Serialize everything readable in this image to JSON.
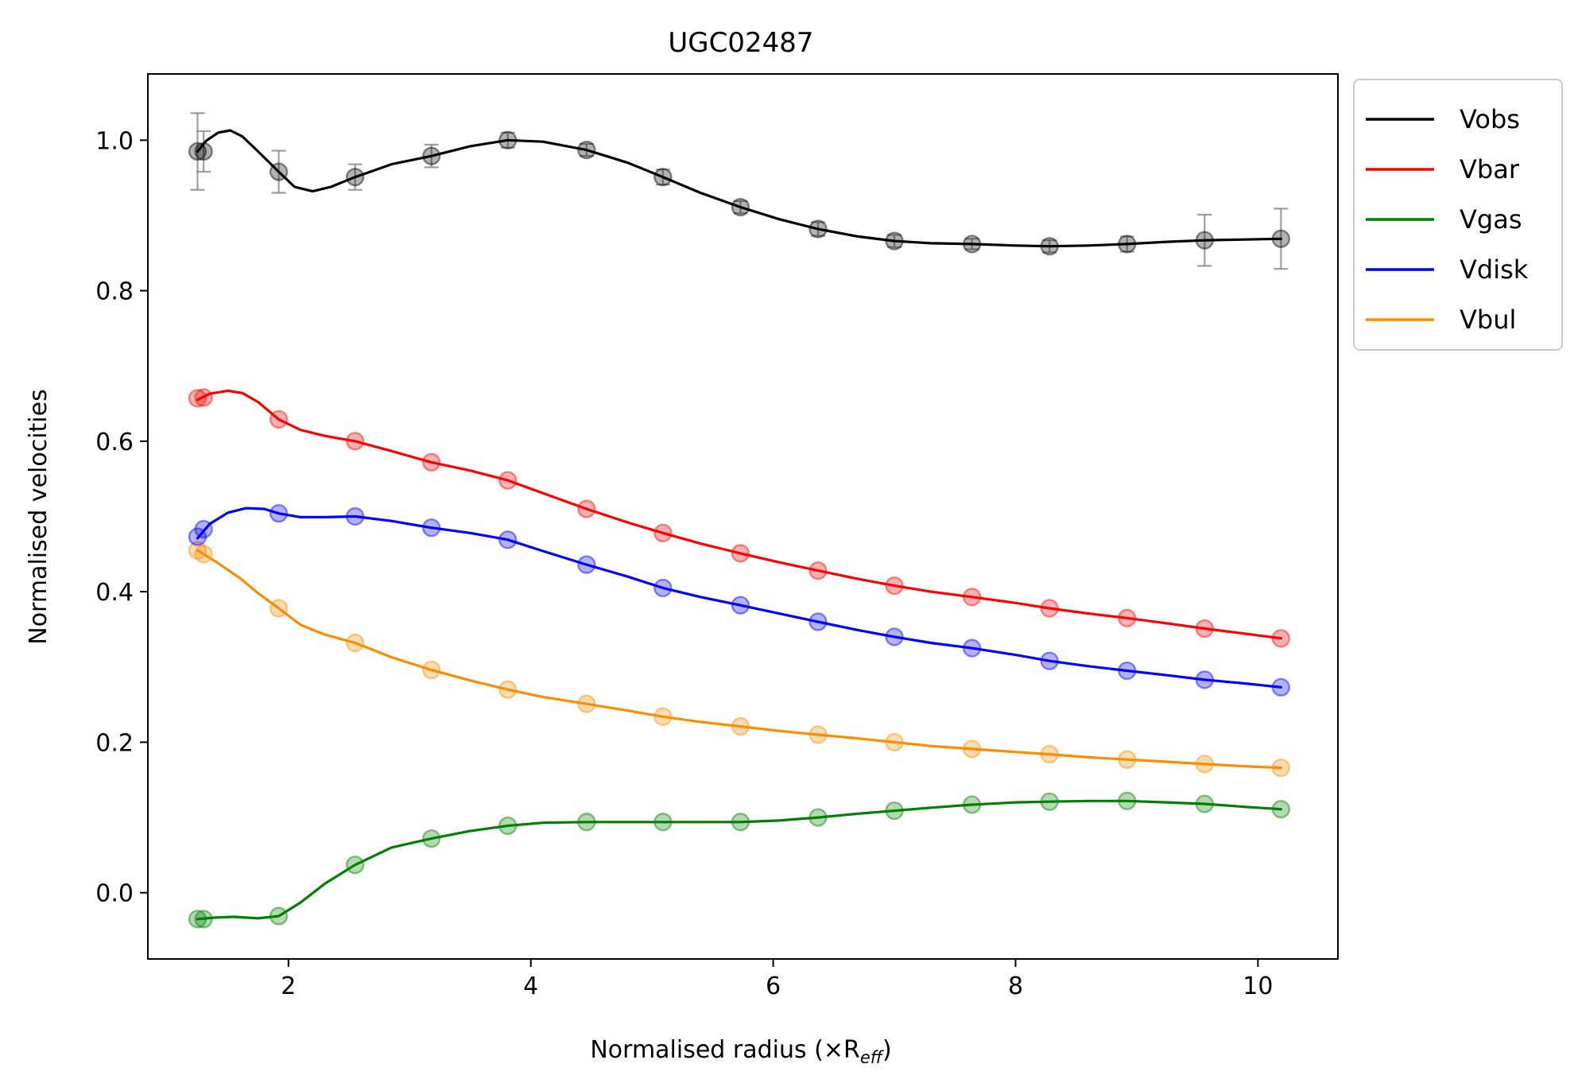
{
  "chart_data": {
    "type": "line",
    "title": "UGC02487",
    "xlabel": "Normalised radius (×R",
    "xlabel_sub": "eff",
    "xlabel_close": ")",
    "ylabel": "Normalised velocities",
    "xlim": [
      0.84,
      10.66
    ],
    "ylim": [
      -0.088,
      1.088
    ],
    "xticks": [
      2,
      4,
      6,
      8,
      10
    ],
    "yticks": [
      0.0,
      0.2,
      0.4,
      0.6,
      0.8,
      1.0
    ],
    "xtick_labels": [
      "2",
      "4",
      "6",
      "8",
      "10"
    ],
    "ytick_labels": [
      "0.0",
      "0.2",
      "0.4",
      "0.6",
      "0.8",
      "1.0"
    ],
    "grid": false,
    "legend_position": "outside-top-right",
    "x": [
      1.25,
      1.3,
      1.92,
      2.55,
      3.18,
      3.81,
      4.46,
      5.09,
      5.73,
      6.37,
      7.0,
      7.64,
      8.28,
      8.92,
      9.56,
      10.19
    ],
    "series": [
      {
        "name": "Vobs",
        "color": "#000000",
        "values": [
          0.985,
          0.985,
          0.958,
          0.951,
          0.979,
          1.0,
          0.987,
          0.951,
          0.911,
          0.882,
          0.866,
          0.862,
          0.859,
          0.862,
          0.867,
          0.869
        ],
        "errors": [
          0.051,
          0.027,
          0.028,
          0.017,
          0.015,
          0.01,
          0.008,
          0.01,
          0.008,
          0.009,
          0.008,
          0.007,
          0.008,
          0.01,
          0.034,
          0.04
        ],
        "curve": [
          [
            1.25,
            0.985
          ],
          [
            1.32,
            0.999
          ],
          [
            1.42,
            1.01
          ],
          [
            1.52,
            1.013
          ],
          [
            1.62,
            1.005
          ],
          [
            1.75,
            0.985
          ],
          [
            1.92,
            0.958
          ],
          [
            2.05,
            0.938
          ],
          [
            2.2,
            0.932
          ],
          [
            2.35,
            0.938
          ],
          [
            2.55,
            0.951
          ],
          [
            2.85,
            0.968
          ],
          [
            3.18,
            0.979
          ],
          [
            3.5,
            0.992
          ],
          [
            3.81,
            1.0
          ],
          [
            4.1,
            0.998
          ],
          [
            4.46,
            0.987
          ],
          [
            4.8,
            0.97
          ],
          [
            5.09,
            0.951
          ],
          [
            5.4,
            0.93
          ],
          [
            5.73,
            0.911
          ],
          [
            6.05,
            0.895
          ],
          [
            6.37,
            0.882
          ],
          [
            6.7,
            0.872
          ],
          [
            7.0,
            0.866
          ],
          [
            7.3,
            0.863
          ],
          [
            7.64,
            0.862
          ],
          [
            8.0,
            0.86
          ],
          [
            8.28,
            0.859
          ],
          [
            8.6,
            0.86
          ],
          [
            8.92,
            0.862
          ],
          [
            9.25,
            0.865
          ],
          [
            9.56,
            0.867
          ],
          [
            9.9,
            0.868
          ],
          [
            10.19,
            0.869
          ]
        ]
      },
      {
        "name": "Vbar",
        "color": "#ff0000",
        "values": [
          0.657,
          0.658,
          0.629,
          0.6,
          0.572,
          0.548,
          0.51,
          0.478,
          0.451,
          0.428,
          0.408,
          0.393,
          0.378,
          0.365,
          0.351,
          0.338
        ],
        "curve": [
          [
            1.25,
            0.655
          ],
          [
            1.35,
            0.663
          ],
          [
            1.5,
            0.667
          ],
          [
            1.62,
            0.664
          ],
          [
            1.75,
            0.652
          ],
          [
            1.92,
            0.629
          ],
          [
            2.1,
            0.615
          ],
          [
            2.3,
            0.607
          ],
          [
            2.55,
            0.6
          ],
          [
            2.85,
            0.587
          ],
          [
            3.18,
            0.572
          ],
          [
            3.5,
            0.561
          ],
          [
            3.81,
            0.548
          ],
          [
            4.1,
            0.531
          ],
          [
            4.46,
            0.51
          ],
          [
            4.8,
            0.492
          ],
          [
            5.09,
            0.478
          ],
          [
            5.4,
            0.464
          ],
          [
            5.73,
            0.451
          ],
          [
            6.05,
            0.439
          ],
          [
            6.37,
            0.428
          ],
          [
            6.7,
            0.417
          ],
          [
            7.0,
            0.408
          ],
          [
            7.3,
            0.4
          ],
          [
            7.64,
            0.393
          ],
          [
            8.0,
            0.385
          ],
          [
            8.28,
            0.378
          ],
          [
            8.6,
            0.371
          ],
          [
            8.92,
            0.365
          ],
          [
            9.25,
            0.358
          ],
          [
            9.56,
            0.351
          ],
          [
            9.9,
            0.344
          ],
          [
            10.19,
            0.338
          ]
        ]
      },
      {
        "name": "Vgas",
        "color": "#008000",
        "values": [
          -0.035,
          -0.035,
          -0.031,
          0.037,
          0.072,
          0.089,
          0.094,
          0.094,
          0.094,
          0.1,
          0.109,
          0.117,
          0.121,
          0.122,
          0.118,
          0.111
        ],
        "curve": [
          [
            1.25,
            -0.035
          ],
          [
            1.4,
            -0.033
          ],
          [
            1.55,
            -0.032
          ],
          [
            1.75,
            -0.034
          ],
          [
            1.92,
            -0.031
          ],
          [
            2.1,
            -0.013
          ],
          [
            2.3,
            0.012
          ],
          [
            2.55,
            0.037
          ],
          [
            2.85,
            0.06
          ],
          [
            3.18,
            0.072
          ],
          [
            3.5,
            0.082
          ],
          [
            3.81,
            0.089
          ],
          [
            4.1,
            0.093
          ],
          [
            4.46,
            0.094
          ],
          [
            5.09,
            0.094
          ],
          [
            5.73,
            0.094
          ],
          [
            6.05,
            0.096
          ],
          [
            6.37,
            0.1
          ],
          [
            6.7,
            0.105
          ],
          [
            7.0,
            0.109
          ],
          [
            7.3,
            0.113
          ],
          [
            7.64,
            0.117
          ],
          [
            8.0,
            0.12
          ],
          [
            8.28,
            0.121
          ],
          [
            8.6,
            0.122
          ],
          [
            8.92,
            0.122
          ],
          [
            9.25,
            0.12
          ],
          [
            9.56,
            0.118
          ],
          [
            9.9,
            0.114
          ],
          [
            10.19,
            0.111
          ]
        ]
      },
      {
        "name": "Vdisk",
        "color": "#0000ff",
        "values": [
          0.473,
          0.483,
          0.504,
          0.5,
          0.485,
          0.469,
          0.436,
          0.405,
          0.382,
          0.36,
          0.34,
          0.325,
          0.308,
          0.295,
          0.283,
          0.273
        ],
        "curve": [
          [
            1.25,
            0.471
          ],
          [
            1.35,
            0.49
          ],
          [
            1.5,
            0.505
          ],
          [
            1.65,
            0.511
          ],
          [
            1.8,
            0.51
          ],
          [
            1.92,
            0.504
          ],
          [
            2.1,
            0.499
          ],
          [
            2.3,
            0.499
          ],
          [
            2.55,
            0.5
          ],
          [
            2.85,
            0.494
          ],
          [
            3.18,
            0.485
          ],
          [
            3.5,
            0.478
          ],
          [
            3.81,
            0.469
          ],
          [
            4.1,
            0.454
          ],
          [
            4.46,
            0.436
          ],
          [
            4.8,
            0.42
          ],
          [
            5.09,
            0.405
          ],
          [
            5.4,
            0.393
          ],
          [
            5.73,
            0.382
          ],
          [
            6.05,
            0.371
          ],
          [
            6.37,
            0.36
          ],
          [
            6.7,
            0.349
          ],
          [
            7.0,
            0.34
          ],
          [
            7.3,
            0.332
          ],
          [
            7.64,
            0.325
          ],
          [
            8.0,
            0.316
          ],
          [
            8.28,
            0.308
          ],
          [
            8.6,
            0.301
          ],
          [
            8.92,
            0.295
          ],
          [
            9.25,
            0.289
          ],
          [
            9.56,
            0.283
          ],
          [
            9.9,
            0.278
          ],
          [
            10.19,
            0.273
          ]
        ]
      },
      {
        "name": "Vbul",
        "color": "#ff8c00",
        "values": [
          0.455,
          0.45,
          0.378,
          0.332,
          0.296,
          0.27,
          0.251,
          0.234,
          0.221,
          0.21,
          0.2,
          0.191,
          0.184,
          0.177,
          0.171,
          0.166
        ],
        "curve": [
          [
            1.25,
            0.455
          ],
          [
            1.4,
            0.44
          ],
          [
            1.6,
            0.418
          ],
          [
            1.75,
            0.398
          ],
          [
            1.92,
            0.378
          ],
          [
            2.1,
            0.356
          ],
          [
            2.3,
            0.343
          ],
          [
            2.55,
            0.332
          ],
          [
            2.85,
            0.313
          ],
          [
            3.18,
            0.296
          ],
          [
            3.5,
            0.282
          ],
          [
            3.81,
            0.27
          ],
          [
            4.1,
            0.26
          ],
          [
            4.46,
            0.251
          ],
          [
            4.8,
            0.242
          ],
          [
            5.09,
            0.234
          ],
          [
            5.4,
            0.227
          ],
          [
            5.73,
            0.221
          ],
          [
            6.05,
            0.215
          ],
          [
            6.37,
            0.21
          ],
          [
            6.7,
            0.205
          ],
          [
            7.0,
            0.2
          ],
          [
            7.3,
            0.195
          ],
          [
            7.64,
            0.191
          ],
          [
            8.0,
            0.187
          ],
          [
            8.28,
            0.184
          ],
          [
            8.6,
            0.18
          ],
          [
            8.92,
            0.177
          ],
          [
            9.25,
            0.174
          ],
          [
            9.56,
            0.171
          ],
          [
            9.9,
            0.168
          ],
          [
            10.19,
            0.166
          ]
        ]
      }
    ]
  }
}
